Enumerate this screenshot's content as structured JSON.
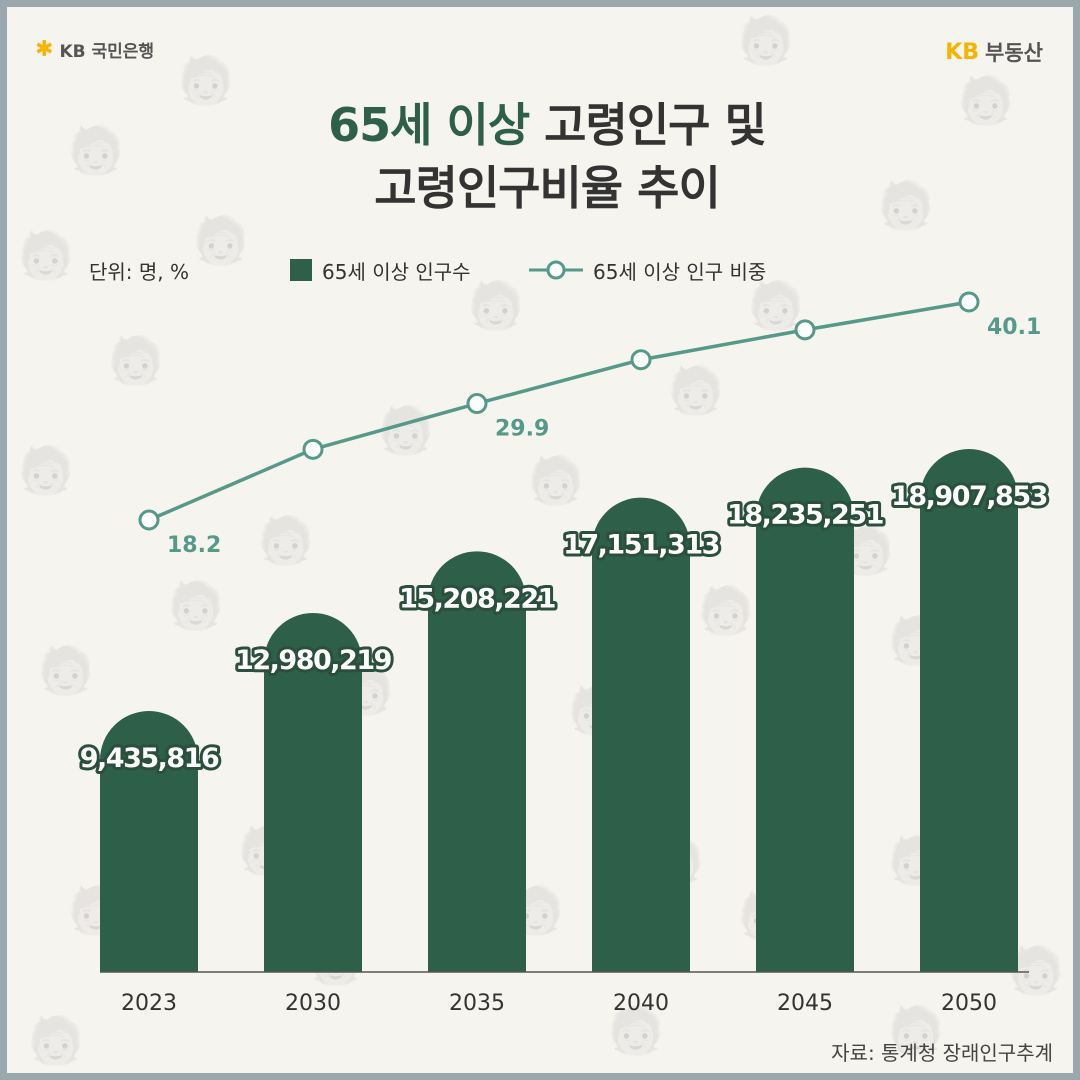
{
  "header": {
    "bank_logo": "KB 국민은행",
    "realestate_logo_kb": "KB",
    "realestate_logo_name": "부동산"
  },
  "title": {
    "line1_accent": "65세 이상",
    "line1_rest": " 고령인구 및",
    "line2": "고령인구비율 추이"
  },
  "unit": "단위: 명, %",
  "legend": {
    "bar": "65세 이상 인구수",
    "line": "65세 이상 인구 비중"
  },
  "source": "자료: 통계청 장래인구추계",
  "colors": {
    "bar": "#2e5f48",
    "line": "#55998a",
    "background": "#f6f4ef",
    "brand": "#f5b400"
  },
  "icons": {
    "bank_logo": "star-icon",
    "background_pattern": "elderly-person-with-cane-icon"
  },
  "chart_data": {
    "type": "bar",
    "categories": [
      "2023",
      "2030",
      "2035",
      "2040",
      "2045",
      "2050"
    ],
    "series": [
      {
        "name": "65세 이상 인구수",
        "type": "bar",
        "values": [
          9435816,
          12980219,
          15208221,
          17151313,
          18235251,
          18907853
        ],
        "labels": [
          "9,435,816",
          "12,980,219",
          "15,208,221",
          "17,151,313",
          "18,235,251",
          "18,907,853"
        ]
      },
      {
        "name": "65세 이상 인구 비중",
        "type": "line",
        "values": [
          18.2,
          25.3,
          29.9,
          34.3,
          37.3,
          40.1
        ],
        "labels": [
          "18.2",
          "",
          "29.9",
          "",
          "",
          "40.1"
        ]
      }
    ],
    "bar_shape": "rounded-top (arch)",
    "grid": false,
    "legend_position": "top"
  }
}
